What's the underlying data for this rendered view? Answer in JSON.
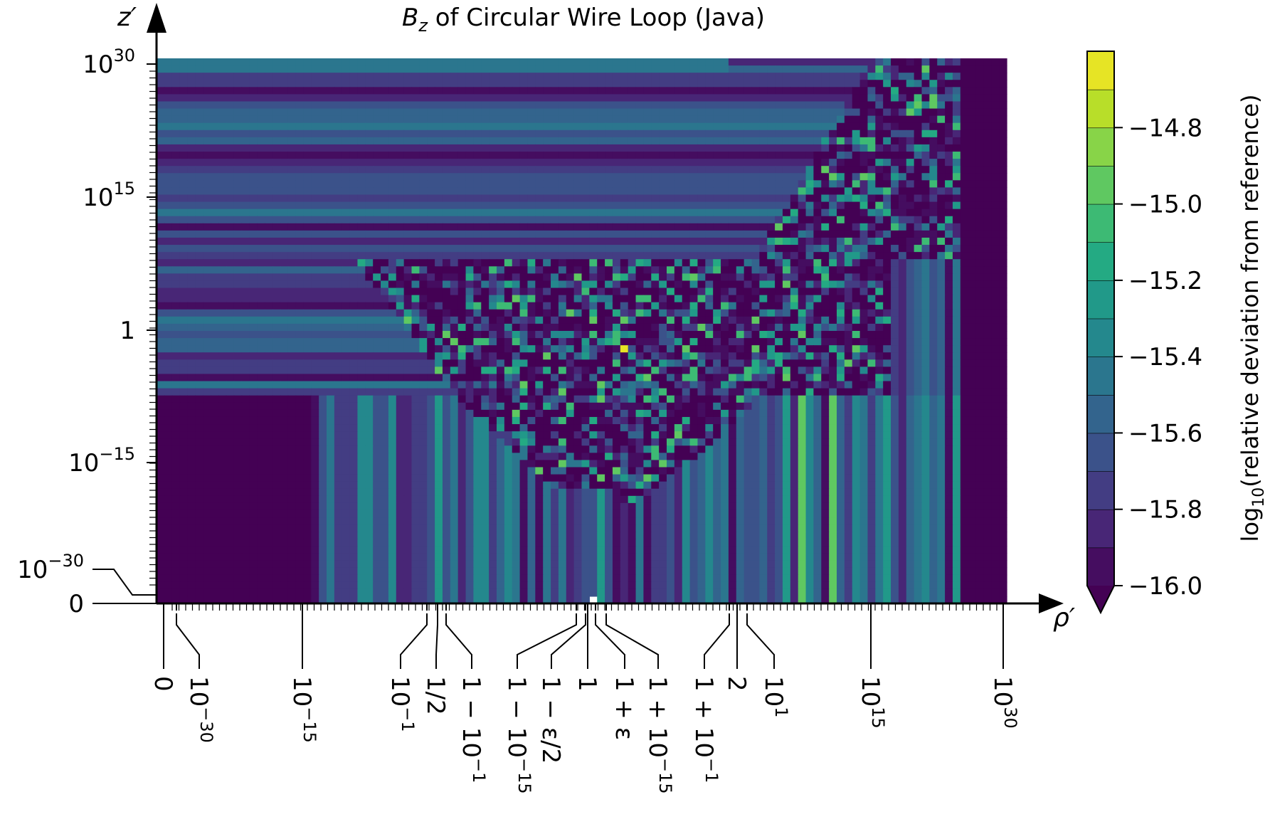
{
  "chart_data": {
    "type": "heatmap",
    "title_var": "B",
    "title_sub": "z",
    "title_rest": " of Circular Wire Loop (Java)",
    "xlabel": "ρ′",
    "ylabel": "z′",
    "x_ticks": [
      {
        "key": "x0",
        "text": "0"
      },
      {
        "key": "x1",
        "text": "10",
        "sup": "−30"
      },
      {
        "key": "x2",
        "text": "10",
        "sup": "−15"
      },
      {
        "key": "x3",
        "text": "10",
        "sup": "−1"
      },
      {
        "key": "x4",
        "text": "1/2"
      },
      {
        "key": "x5",
        "text": "1 − 10",
        "sup": "−1"
      },
      {
        "key": "x6",
        "text": "1 − 10",
        "sup": "−15"
      },
      {
        "key": "x7",
        "text": "1 − ε/2"
      },
      {
        "key": "x8",
        "text": "1"
      },
      {
        "key": "x9",
        "text": "1 + ε"
      },
      {
        "key": "x10",
        "text": "1 + 10",
        "sup": "−15"
      },
      {
        "key": "x11",
        "text": "1 + 10",
        "sup": "−1"
      },
      {
        "key": "x12",
        "text": "2"
      },
      {
        "key": "x13",
        "text": "10",
        "sup": "1"
      },
      {
        "key": "x14",
        "text": "10",
        "sup": "15"
      },
      {
        "key": "x15",
        "text": "10",
        "sup": "30"
      }
    ],
    "y_ticks": [
      {
        "key": "y0",
        "text": "0"
      },
      {
        "key": "y1",
        "text": "10",
        "sup": "−30"
      },
      {
        "key": "y2",
        "text": "10",
        "sup": "−15"
      },
      {
        "key": "y3",
        "text": "1"
      },
      {
        "key": "y4",
        "text": "10",
        "sup": "15"
      },
      {
        "key": "y5",
        "text": "10",
        "sup": "30"
      }
    ],
    "colorbar": {
      "label_main": "log",
      "label_sub": "10",
      "label_rest": "(relative deviation from reference)",
      "min": -16.0,
      "max": -14.6,
      "levels": 14,
      "extend": "min",
      "colormap": "viridis",
      "ticks": [
        {
          "value": -16.0,
          "text": "−16.0"
        },
        {
          "value": -15.8,
          "text": "−15.8"
        },
        {
          "value": -15.6,
          "text": "−15.6"
        },
        {
          "value": -15.4,
          "text": "−15.4"
        },
        {
          "value": -15.2,
          "text": "−15.2"
        },
        {
          "value": -15.0,
          "text": "−15.0"
        },
        {
          "value": -14.8,
          "text": "−14.8"
        }
      ]
    },
    "grid": false
  }
}
